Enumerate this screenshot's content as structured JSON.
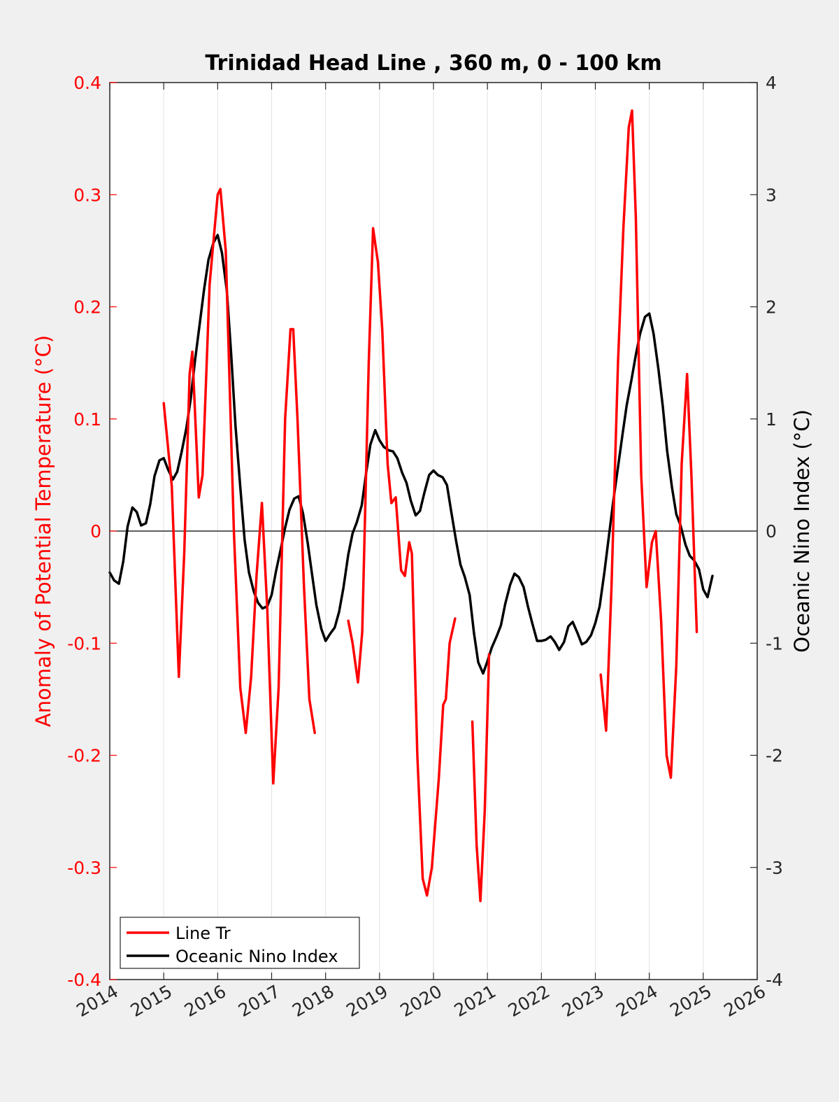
{
  "chart_data": {
    "type": "line",
    "title": "Trinidad Head Line , 360 m, 0 - 100 km",
    "ylabel_left": "Anomaly of Potential Temperature (°C)",
    "ylabel_right": "Oceanic Nino Index (°C)",
    "xlabel": "",
    "xlim": [
      2014,
      2026
    ],
    "ylim_left": [
      -0.4,
      0.4
    ],
    "ylim_right": [
      -4,
      4
    ],
    "x_ticks": [
      "2014",
      "2015",
      "2016",
      "2017",
      "2018",
      "2019",
      "2020",
      "2021",
      "2022",
      "2023",
      "2024",
      "2025",
      "2026"
    ],
    "y_left_ticks": [
      "-0.4",
      "-0.3",
      "-0.2",
      "-0.1",
      "0",
      "0.1",
      "0.2",
      "0.3",
      "0.4"
    ],
    "y_right_ticks": [
      "-4",
      "-3",
      "-2",
      "-1",
      "0",
      "1",
      "2",
      "3",
      "4"
    ],
    "grid": "x-only",
    "legend_position": "bottom-left",
    "colors": {
      "line_tr": "#ff0000",
      "oni": "#000000"
    },
    "series": [
      {
        "name": "Line Tr",
        "axis": "left",
        "segments": [
          [
            [
              2015.0,
              0.114
            ],
            [
              2015.15,
              0.04
            ],
            [
              2015.28,
              -0.13
            ],
            [
              2015.38,
              -0.02
            ],
            [
              2015.48,
              0.14
            ],
            [
              2015.53,
              0.16
            ],
            [
              2015.65,
              0.03
            ],
            [
              2015.72,
              0.05
            ],
            [
              2015.85,
              0.22
            ],
            [
              2016.0,
              0.3
            ],
            [
              2016.05,
              0.305
            ],
            [
              2016.15,
              0.25
            ],
            [
              2016.3,
              0.0
            ],
            [
              2016.42,
              -0.14
            ],
            [
              2016.52,
              -0.18
            ],
            [
              2016.62,
              -0.13
            ],
            [
              2016.72,
              -0.04
            ],
            [
              2016.82,
              0.025
            ],
            [
              2016.92,
              -0.07
            ],
            [
              2017.03,
              -0.225
            ],
            [
              2017.13,
              -0.14
            ],
            [
              2017.25,
              0.1
            ],
            [
              2017.35,
              0.18
            ],
            [
              2017.4,
              0.18
            ],
            [
              2017.48,
              0.1
            ],
            [
              2017.6,
              -0.05
            ],
            [
              2017.7,
              -0.15
            ],
            [
              2017.8,
              -0.18
            ]
          ],
          [
            [
              2018.42,
              -0.08
            ],
            [
              2018.5,
              -0.1
            ],
            [
              2018.6,
              -0.135
            ],
            [
              2018.68,
              -0.09
            ],
            [
              2018.8,
              0.15
            ],
            [
              2018.88,
              0.27
            ],
            [
              2018.97,
              0.24
            ],
            [
              2019.05,
              0.18
            ],
            [
              2019.15,
              0.06
            ],
            [
              2019.22,
              0.025
            ],
            [
              2019.3,
              0.03
            ],
            [
              2019.4,
              -0.035
            ],
            [
              2019.47,
              -0.04
            ],
            [
              2019.55,
              -0.01
            ],
            [
              2019.6,
              -0.02
            ],
            [
              2019.7,
              -0.2
            ],
            [
              2019.8,
              -0.31
            ],
            [
              2019.88,
              -0.325
            ],
            [
              2019.97,
              -0.3
            ],
            [
              2020.1,
              -0.22
            ],
            [
              2020.18,
              -0.155
            ],
            [
              2020.23,
              -0.15
            ],
            [
              2020.3,
              -0.1
            ],
            [
              2020.4,
              -0.078
            ]
          ],
          [
            [
              2020.72,
              -0.17
            ],
            [
              2020.8,
              -0.28
            ],
            [
              2020.87,
              -0.33
            ],
            [
              2020.95,
              -0.25
            ],
            [
              2021.03,
              -0.11
            ]
          ],
          [
            [
              2023.1,
              -0.128
            ],
            [
              2023.2,
              -0.178
            ],
            [
              2023.3,
              -0.05
            ],
            [
              2023.42,
              0.15
            ],
            [
              2023.52,
              0.27
            ],
            [
              2023.62,
              0.36
            ],
            [
              2023.68,
              0.375
            ],
            [
              2023.75,
              0.28
            ],
            [
              2023.85,
              0.05
            ],
            [
              2023.95,
              -0.05
            ],
            [
              2024.05,
              -0.01
            ],
            [
              2024.12,
              0.0
            ],
            [
              2024.22,
              -0.08
            ],
            [
              2024.32,
              -0.2
            ],
            [
              2024.4,
              -0.22
            ],
            [
              2024.5,
              -0.12
            ],
            [
              2024.6,
              0.06
            ],
            [
              2024.7,
              0.14
            ],
            [
              2024.78,
              0.05
            ],
            [
              2024.88,
              -0.09
            ]
          ]
        ]
      },
      {
        "name": "Oceanic Nino Index",
        "axis": "right",
        "segments": [
          [
            [
              2014.0,
              -0.37
            ],
            [
              2014.08,
              -0.44
            ],
            [
              2014.17,
              -0.47
            ],
            [
              2014.25,
              -0.27
            ],
            [
              2014.33,
              0.04
            ],
            [
              2014.42,
              0.21
            ],
            [
              2014.5,
              0.17
            ],
            [
              2014.58,
              0.05
            ],
            [
              2014.67,
              0.07
            ],
            [
              2014.75,
              0.24
            ],
            [
              2014.83,
              0.49
            ],
            [
              2014.92,
              0.63
            ],
            [
              2015.0,
              0.65
            ],
            [
              2015.08,
              0.55
            ],
            [
              2015.17,
              0.46
            ],
            [
              2015.25,
              0.53
            ],
            [
              2015.33,
              0.7
            ],
            [
              2015.42,
              0.92
            ],
            [
              2015.5,
              1.18
            ],
            [
              2015.58,
              1.52
            ],
            [
              2015.67,
              1.86
            ],
            [
              2015.75,
              2.16
            ],
            [
              2015.83,
              2.42
            ],
            [
              2015.92,
              2.57
            ],
            [
              2016.0,
              2.64
            ],
            [
              2016.08,
              2.48
            ],
            [
              2016.17,
              2.14
            ],
            [
              2016.25,
              1.58
            ],
            [
              2016.33,
              0.94
            ],
            [
              2016.42,
              0.39
            ],
            [
              2016.5,
              -0.08
            ],
            [
              2016.58,
              -0.37
            ],
            [
              2016.67,
              -0.54
            ],
            [
              2016.75,
              -0.64
            ],
            [
              2016.83,
              -0.69
            ],
            [
              2016.92,
              -0.67
            ],
            [
              2017.0,
              -0.57
            ],
            [
              2017.08,
              -0.36
            ],
            [
              2017.17,
              -0.16
            ],
            [
              2017.25,
              0.03
            ],
            [
              2017.33,
              0.19
            ],
            [
              2017.42,
              0.29
            ],
            [
              2017.5,
              0.31
            ],
            [
              2017.58,
              0.16
            ],
            [
              2017.67,
              -0.11
            ],
            [
              2017.75,
              -0.39
            ],
            [
              2017.83,
              -0.66
            ],
            [
              2017.92,
              -0.87
            ],
            [
              2018.0,
              -0.98
            ],
            [
              2018.08,
              -0.92
            ],
            [
              2018.17,
              -0.86
            ],
            [
              2018.25,
              -0.72
            ],
            [
              2018.33,
              -0.51
            ],
            [
              2018.42,
              -0.21
            ],
            [
              2018.5,
              -0.02
            ],
            [
              2018.58,
              0.08
            ],
            [
              2018.67,
              0.23
            ],
            [
              2018.75,
              0.51
            ],
            [
              2018.83,
              0.77
            ],
            [
              2018.92,
              0.9
            ],
            [
              2019.0,
              0.81
            ],
            [
              2019.08,
              0.75
            ],
            [
              2019.17,
              0.72
            ],
            [
              2019.25,
              0.71
            ],
            [
              2019.33,
              0.65
            ],
            [
              2019.42,
              0.52
            ],
            [
              2019.5,
              0.43
            ],
            [
              2019.58,
              0.27
            ],
            [
              2019.67,
              0.14
            ],
            [
              2019.75,
              0.18
            ],
            [
              2019.83,
              0.34
            ],
            [
              2019.92,
              0.5
            ],
            [
              2020.0,
              0.54
            ],
            [
              2020.08,
              0.5
            ],
            [
              2020.17,
              0.48
            ],
            [
              2020.25,
              0.41
            ],
            [
              2020.33,
              0.17
            ],
            [
              2020.42,
              -0.09
            ],
            [
              2020.5,
              -0.3
            ],
            [
              2020.58,
              -0.41
            ],
            [
              2020.67,
              -0.57
            ],
            [
              2020.75,
              -0.91
            ],
            [
              2020.83,
              -1.17
            ],
            [
              2020.92,
              -1.27
            ],
            [
              2021.0,
              -1.16
            ],
            [
              2021.08,
              -1.04
            ],
            [
              2021.17,
              -0.94
            ],
            [
              2021.25,
              -0.84
            ],
            [
              2021.33,
              -0.65
            ],
            [
              2021.42,
              -0.48
            ],
            [
              2021.5,
              -0.38
            ],
            [
              2021.58,
              -0.41
            ],
            [
              2021.67,
              -0.5
            ],
            [
              2021.75,
              -0.67
            ],
            [
              2021.83,
              -0.82
            ],
            [
              2021.92,
              -0.98
            ],
            [
              2022.0,
              -0.98
            ],
            [
              2022.08,
              -0.97
            ],
            [
              2022.17,
              -0.94
            ],
            [
              2022.25,
              -0.99
            ],
            [
              2022.33,
              -1.06
            ],
            [
              2022.42,
              -0.99
            ],
            [
              2022.5,
              -0.85
            ],
            [
              2022.58,
              -0.81
            ],
            [
              2022.67,
              -0.91
            ],
            [
              2022.75,
              -1.01
            ],
            [
              2022.83,
              -0.99
            ],
            [
              2022.92,
              -0.93
            ],
            [
              2023.0,
              -0.82
            ],
            [
              2023.08,
              -0.67
            ],
            [
              2023.17,
              -0.36
            ],
            [
              2023.25,
              -0.05
            ],
            [
              2023.33,
              0.26
            ],
            [
              2023.42,
              0.57
            ],
            [
              2023.5,
              0.85
            ],
            [
              2023.58,
              1.12
            ],
            [
              2023.67,
              1.35
            ],
            [
              2023.75,
              1.57
            ],
            [
              2023.83,
              1.76
            ],
            [
              2023.92,
              1.91
            ],
            [
              2024.0,
              1.94
            ],
            [
              2024.08,
              1.76
            ],
            [
              2024.17,
              1.44
            ],
            [
              2024.25,
              1.11
            ],
            [
              2024.33,
              0.72
            ],
            [
              2024.42,
              0.39
            ],
            [
              2024.5,
              0.15
            ],
            [
              2024.58,
              0.05
            ],
            [
              2024.67,
              -0.12
            ],
            [
              2024.75,
              -0.22
            ],
            [
              2024.83,
              -0.26
            ],
            [
              2024.92,
              -0.34
            ],
            [
              2025.0,
              -0.52
            ],
            [
              2025.08,
              -0.59
            ],
            [
              2025.17,
              -0.4
            ]
          ]
        ]
      }
    ]
  }
}
